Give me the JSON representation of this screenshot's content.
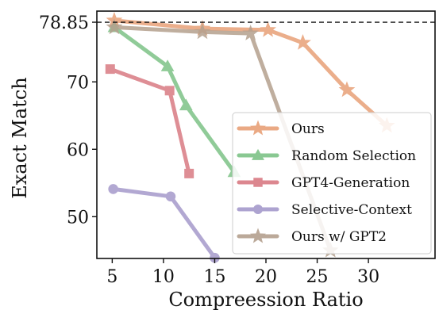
{
  "chart_data": {
    "type": "line",
    "xlabel": "Compreession Ratio",
    "ylabel": "Exact Match",
    "xlim": [
      3.5,
      36.5
    ],
    "ylim": [
      43.8,
      80.5
    ],
    "xticks": [
      5,
      10,
      15,
      20,
      25,
      30
    ],
    "yticks": [
      50,
      60,
      70
    ],
    "grid": false,
    "legend_position": "bottom-right",
    "reference_line": {
      "y": 78.85,
      "label": "78.85",
      "style": "dashed"
    },
    "series": [
      {
        "name": "Ours",
        "color": "#E8A077",
        "marker": "star",
        "x": [
          5.2,
          13.8,
          20.2,
          23.6,
          27.9,
          31.8
        ],
        "y": [
          79.1,
          77.9,
          77.7,
          75.8,
          68.8,
          63.5
        ]
      },
      {
        "name": "Random Selection",
        "color": "#7DC387",
        "marker": "triangle",
        "x": [
          5.2,
          10.4,
          12.2,
          16.9
        ],
        "y": [
          78.1,
          72.3,
          66.5,
          56.6
        ]
      },
      {
        "name": "GPT4-Generation",
        "color": "#D97B83",
        "marker": "square",
        "x": [
          4.8,
          10.6,
          12.5
        ],
        "y": [
          71.9,
          68.7,
          56.4
        ]
      },
      {
        "name": "Selective-Context",
        "color": "#A59ACB",
        "marker": "circle",
        "x": [
          5.1,
          10.7,
          15.0
        ],
        "y": [
          54.1,
          53.0,
          43.9
        ]
      },
      {
        "name": "Ours w/ GPT2",
        "color": "#B4A08E",
        "marker": "star",
        "x": [
          5.2,
          13.8,
          18.5,
          26.3
        ],
        "y": [
          78.1,
          77.4,
          77.2,
          45.0
        ]
      }
    ]
  }
}
